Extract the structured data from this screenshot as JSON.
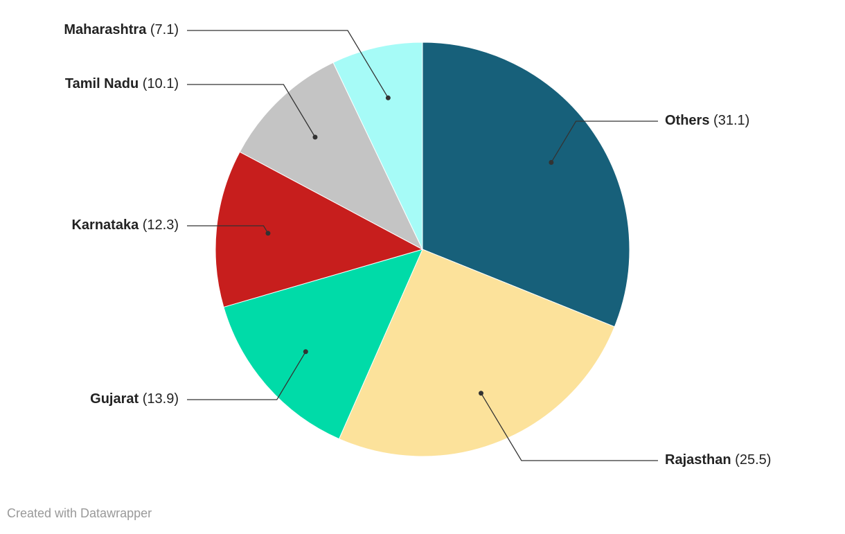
{
  "chart_data": {
    "type": "pie",
    "categories": [
      "Others",
      "Rajasthan",
      "Gujarat",
      "Karnataka",
      "Tamil Nadu",
      "Maharashtra"
    ],
    "values": [
      31.1,
      25.5,
      13.9,
      12.3,
      10.1,
      7.1
    ],
    "value_labels": [
      "(31.1)",
      "(25.5)",
      "(13.9)",
      "(12.3)",
      "(10.1)",
      "(7.1)"
    ],
    "colors": [
      "#17607a",
      "#fce29b",
      "#00dba8",
      "#c71e1d",
      "#c4c4c4",
      "#a6fbf7"
    ],
    "credit": "Created with Datawrapper"
  }
}
